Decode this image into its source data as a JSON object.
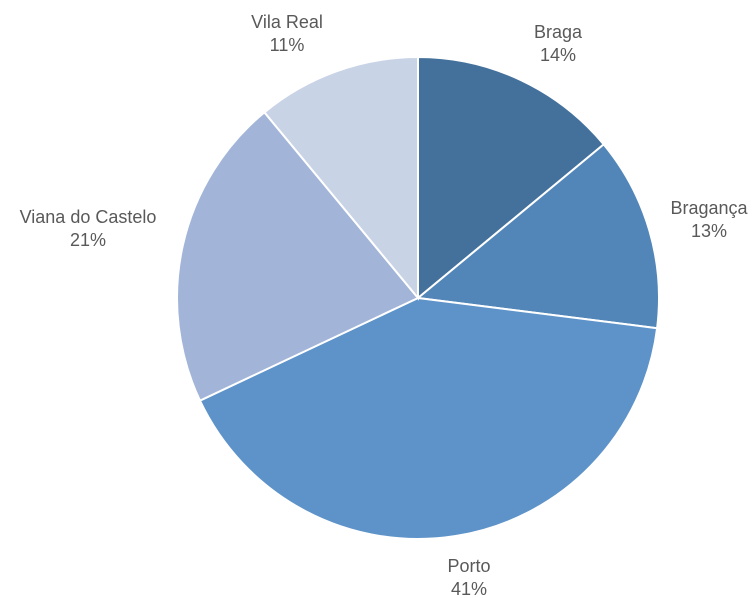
{
  "chart_data": {
    "type": "pie",
    "title": "",
    "start_angle_deg": 0,
    "direction": "clockwise",
    "slices": [
      {
        "label": "Braga",
        "value": 14,
        "value_label": "14%",
        "color": "#44719C"
      },
      {
        "label": "Bragança",
        "value": 13,
        "value_label": "13%",
        "color": "#5386B8"
      },
      {
        "label": "Porto",
        "value": 41,
        "value_label": "41%",
        "color": "#5E93C9"
      },
      {
        "label": "Viana do Castelo",
        "value": 21,
        "value_label": "21%",
        "color": "#A2B5D8"
      },
      {
        "label": "Vila Real",
        "value": 11,
        "value_label": "11%",
        "color": "#C8D3E6"
      }
    ],
    "legend": "none"
  }
}
